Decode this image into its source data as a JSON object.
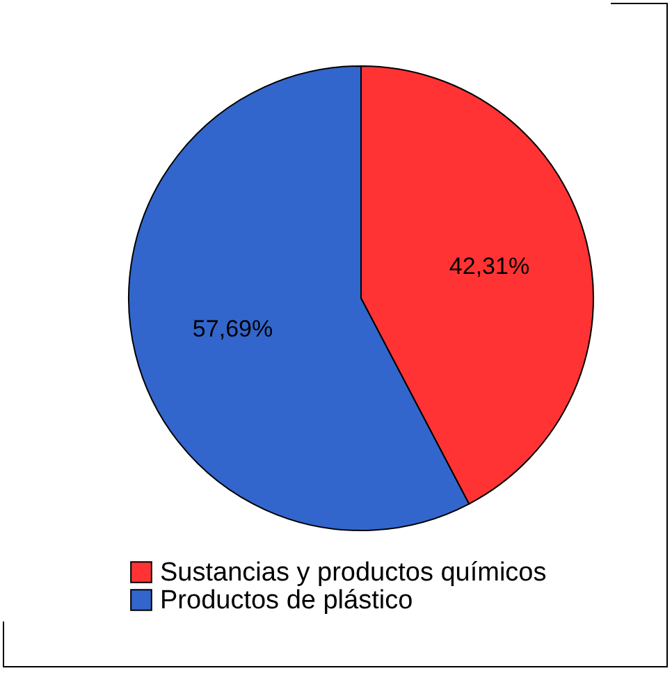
{
  "chart_data": {
    "type": "pie",
    "categories": [
      "Sustancias y productos químicos",
      "Productos de plástico"
    ],
    "values": [
      42.31,
      57.69
    ],
    "colors": [
      "#ff3333",
      "#3366cc"
    ],
    "value_labels": [
      "42,31%",
      "57,69%"
    ],
    "legend": "bottom"
  }
}
